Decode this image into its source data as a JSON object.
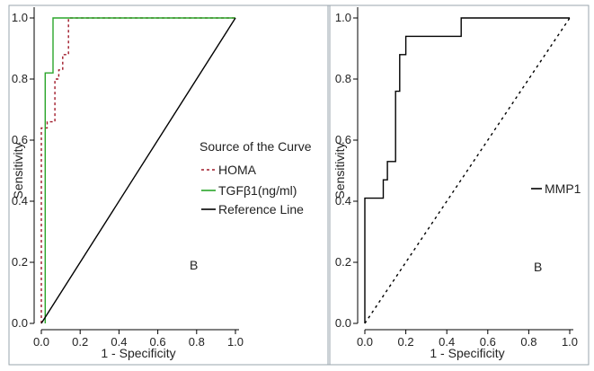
{
  "chart_data": [
    {
      "type": "line",
      "panel_label": "B",
      "xlabel": "1 - Specificity",
      "ylabel": "Sensitivity",
      "xlim": [
        0,
        1
      ],
      "ylim": [
        0,
        1
      ],
      "x_ticks": [
        "0.0",
        "0.2",
        "0.4",
        "0.6",
        "0.8",
        "1.0"
      ],
      "y_ticks": [
        "0.0",
        "0.2",
        "0.4",
        "0.6",
        "0.8",
        "1.0"
      ],
      "legend": {
        "title": "Source of the Curve",
        "position": "right-middle"
      },
      "series": [
        {
          "name": "HOMA",
          "color": "#a01a2a",
          "dash": "dashed",
          "points": [
            [
              0,
              0
            ],
            [
              0,
              0.2
            ],
            [
              0,
              0.64
            ],
            [
              0.03,
              0.64
            ],
            [
              0.03,
              0.66
            ],
            [
              0.07,
              0.66
            ],
            [
              0.07,
              0.8
            ],
            [
              0.09,
              0.8
            ],
            [
              0.09,
              0.83
            ],
            [
              0.11,
              0.83
            ],
            [
              0.11,
              0.88
            ],
            [
              0.14,
              0.88
            ],
            [
              0.14,
              0.97
            ],
            [
              0.14,
              1.0
            ],
            [
              1.0,
              1.0
            ]
          ]
        },
        {
          "name": "TGFβ1(ng/ml)",
          "color": "#2aa52a",
          "dash": "solid",
          "points": [
            [
              0.02,
              0
            ],
            [
              0.02,
              0.82
            ],
            [
              0.06,
              0.82
            ],
            [
              0.06,
              1.0
            ],
            [
              1.0,
              1.0
            ]
          ]
        },
        {
          "name": "Reference Line",
          "color": "#000000",
          "dash": "solid",
          "points": [
            [
              0,
              0
            ],
            [
              1,
              1
            ]
          ]
        }
      ]
    },
    {
      "type": "line",
      "panel_label": "B",
      "xlabel": "1 - Specificity",
      "ylabel": "Sensitivity",
      "xlim": [
        0,
        1
      ],
      "ylim": [
        0,
        1
      ],
      "x_ticks": [
        "0.0",
        "0.2",
        "0.4",
        "0.6",
        "0.8",
        "1.0"
      ],
      "y_ticks": [
        "0.0",
        "0.2",
        "0.4",
        "0.6",
        "0.8",
        "1.0"
      ],
      "legend": {
        "title": "",
        "position": "right-middle"
      },
      "series": [
        {
          "name": "MMP1",
          "color": "#000000",
          "dash": "solid",
          "points": [
            [
              0,
              0
            ],
            [
              0,
              0.41
            ],
            [
              0.09,
              0.41
            ],
            [
              0.09,
              0.47
            ],
            [
              0.11,
              0.47
            ],
            [
              0.11,
              0.53
            ],
            [
              0.15,
              0.53
            ],
            [
              0.15,
              0.76
            ],
            [
              0.17,
              0.76
            ],
            [
              0.17,
              0.88
            ],
            [
              0.2,
              0.88
            ],
            [
              0.2,
              0.94
            ],
            [
              0.22,
              0.94
            ],
            [
              0.47,
              0.94
            ],
            [
              0.47,
              1.0
            ],
            [
              1.0,
              1.0
            ]
          ]
        },
        {
          "name": "",
          "color": "#000000",
          "dash": "dashed",
          "points": [
            [
              0,
              0
            ],
            [
              1,
              1
            ]
          ]
        }
      ]
    }
  ]
}
